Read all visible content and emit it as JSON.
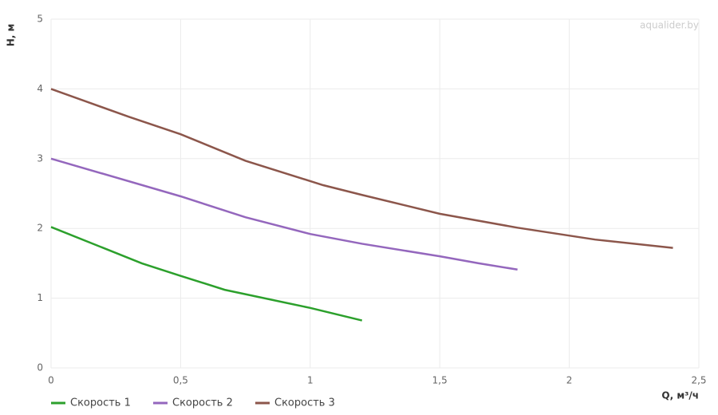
{
  "chart_data": {
    "type": "line",
    "xlabel": "Q, м³/ч",
    "ylabel": "H, м",
    "watermark": "aqualider.by",
    "xlim": [
      0,
      2.5
    ],
    "xticks": [
      0,
      {
        "value": 0.5,
        "label": "0,5"
      },
      1,
      {
        "value": 1.5,
        "label": "1,5"
      },
      2,
      {
        "value": 2.5,
        "label": "2,5"
      }
    ],
    "ylim": [
      0,
      5
    ],
    "yticks": [
      0,
      1,
      2,
      3,
      4,
      5
    ],
    "grid": true,
    "legend": "bottom-left",
    "series": [
      {
        "name": "Скорость 1",
        "color": "#2ca02c",
        "x": [
          0,
          0.35,
          0.5,
          0.67,
          1.0,
          1.2
        ],
        "values": [
          2.02,
          1.5,
          1.32,
          1.12,
          0.86,
          0.68
        ]
      },
      {
        "name": "Скорость 2",
        "color": "#9467bd",
        "x": [
          0,
          0.5,
          0.75,
          1.0,
          1.2,
          1.5,
          1.65,
          1.8
        ],
        "values": [
          3.0,
          2.46,
          2.16,
          1.92,
          1.78,
          1.6,
          1.5,
          1.41
        ]
      },
      {
        "name": "Скорость 3",
        "color": "#8c564b",
        "x": [
          0,
          0.3,
          0.5,
          0.75,
          1.05,
          1.2,
          1.5,
          1.8,
          2.1,
          2.4
        ],
        "values": [
          4.0,
          3.6,
          3.35,
          2.97,
          2.62,
          2.48,
          2.21,
          2.01,
          1.84,
          1.72
        ]
      }
    ]
  }
}
